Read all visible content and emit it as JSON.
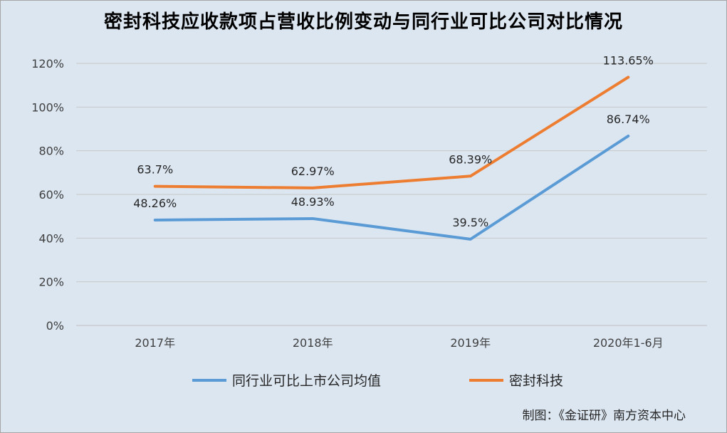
{
  "title": "密封科技应收款项占营收比例变动与同行业可比公司对比情况",
  "source": "制图：《金证研》南方资本中心",
  "colors": {
    "background": "#dce6f1",
    "grid": "#c8c8c8",
    "peer": "#5b9bd5",
    "company": "#ed7d31"
  },
  "chart_data": {
    "type": "line",
    "title": "密封科技应收款项占营收比例变动与同行业可比公司对比情况",
    "categories": [
      "2017年",
      "2018年",
      "2019年",
      "2020年1-6月"
    ],
    "y_ticks": [
      "0%",
      "20%",
      "40%",
      "60%",
      "80%",
      "100%",
      "120%"
    ],
    "ylim": [
      0,
      120
    ],
    "grid": true,
    "legend_position": "bottom",
    "series": [
      {
        "name": "同行业可比上市公司均值",
        "values": [
          48.26,
          48.93,
          39.5,
          86.74
        ],
        "labels": [
          "48.26%",
          "48.93%",
          "39.5%",
          "86.74%"
        ],
        "color": "#5b9bd5"
      },
      {
        "name": "密封科技",
        "values": [
          63.7,
          62.97,
          68.39,
          113.65
        ],
        "labels": [
          "63.7%",
          "62.97%",
          "68.39%",
          "113.65%"
        ],
        "color": "#ed7d31"
      }
    ]
  }
}
